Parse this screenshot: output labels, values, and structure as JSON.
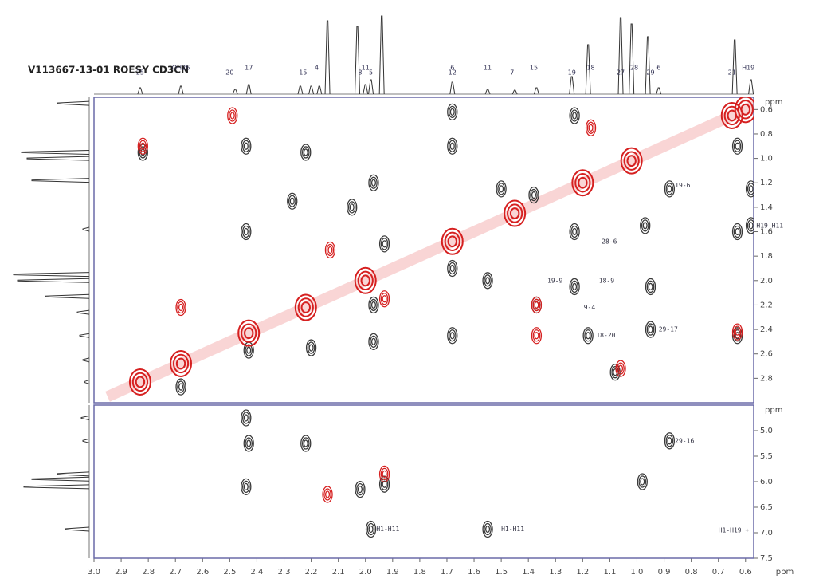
{
  "chart_data": {
    "type": "contour",
    "title": "V113667-13-01 ROESY CD3CN",
    "xlabel": "ppm",
    "xlim": [
      3.0,
      0.57
    ],
    "xticks": [
      {
        "value": 3.0,
        "label": "3.0"
      },
      2.9,
      2.8,
      2.7,
      2.6,
      2.5,
      2.4,
      2.3,
      2.2,
      2.1,
      {
        "value": 2.0,
        "label": "2.0"
      },
      1.9,
      1.8,
      1.7,
      1.6,
      1.5,
      1.4,
      1.3,
      1.2,
      1.1,
      {
        "value": 1.0,
        "label": "1.0"
      },
      0.9,
      0.8,
      0.7,
      0.6
    ],
    "projection": {
      "color": "#333333",
      "x": [
        2.83,
        2.68,
        2.48,
        2.43,
        2.24,
        2.2,
        2.17,
        2.14,
        2.03,
        2.0,
        1.98,
        1.94,
        1.68,
        1.55,
        1.45,
        1.37,
        1.24,
        1.18,
        1.06,
        1.02,
        0.96,
        0.92,
        0.64,
        0.58
      ],
      "height": [
        8,
        10,
        6,
        12,
        10,
        10,
        10,
        92,
        85,
        12,
        18,
        98,
        15,
        6,
        5,
        8,
        22,
        62,
        96,
        88,
        72,
        8,
        68,
        18
      ]
    },
    "peak_labels": [
      {
        "text": "25",
        "x": 2.83
      },
      {
        "text": "OH26",
        "x": 2.68
      },
      {
        "text": "20",
        "x": 2.5
      },
      {
        "text": "17",
        "x": 2.43
      },
      {
        "text": "15",
        "x": 2.23
      },
      {
        "text": "4",
        "x": 2.18
      },
      {
        "text": "8",
        "x": 2.02
      },
      {
        "text": "11",
        "x": 2.0
      },
      {
        "text": "5",
        "x": 1.98
      },
      {
        "text": "6",
        "x": 1.68
      },
      {
        "text": "12",
        "x": 1.68
      },
      {
        "text": "11",
        "x": 1.55
      },
      {
        "text": "7",
        "x": 1.46
      },
      {
        "text": "15",
        "x": 1.38
      },
      {
        "text": "19",
        "x": 1.24
      },
      {
        "text": "18",
        "x": 1.17
      },
      {
        "text": "27",
        "x": 1.06
      },
      {
        "text": "28",
        "x": 1.01
      },
      {
        "text": "29",
        "x": 0.95
      },
      {
        "text": "6",
        "x": 0.92
      },
      {
        "text": "21",
        "x": 0.65
      },
      {
        "text": "H19",
        "x": 0.59
      }
    ],
    "panels": [
      {
        "ylabel": "ppm",
        "ylim": [
          0.5,
          3.0
        ],
        "yticks": [
          0.6,
          0.8,
          {
            "value": 1.0,
            "label": "1.0"
          },
          1.2,
          1.4,
          1.6,
          1.8,
          {
            "value": 2.0,
            "label": "2.0"
          },
          2.2,
          2.4,
          2.6,
          2.8
        ],
        "projection": {
          "color": "#333333",
          "y": [
            0.55,
            0.95,
            1.0,
            1.18,
            1.58,
            1.95,
            2.0,
            2.13,
            2.26,
            2.45,
            2.65,
            2.83
          ],
          "height": [
            40,
            85,
            78,
            72,
            8,
            95,
            90,
            55,
            15,
            12,
            8,
            6
          ]
        },
        "positive": {
          "color": "#3a3a3a",
          "x": [
            2.82,
            2.44,
            2.22,
            2.27,
            2.44,
            2.05,
            1.97,
            1.93,
            1.68,
            1.68,
            1.68,
            1.55,
            1.5,
            1.38,
            1.37,
            1.23,
            1.23,
            1.23,
            1.18,
            1.08,
            0.97,
            0.95,
            0.95,
            0.88,
            0.63,
            0.63,
            0.63,
            0.58,
            0.58,
            1.68,
            2.43,
            2.68,
            2.2,
            1.97,
            1.97
          ],
          "y": [
            0.95,
            0.9,
            0.95,
            1.35,
            1.6,
            1.4,
            1.2,
            1.7,
            0.62,
            0.9,
            1.9,
            2.0,
            1.25,
            1.3,
            2.2,
            0.65,
            1.6,
            2.05,
            2.45,
            2.75,
            1.55,
            2.05,
            2.4,
            1.25,
            0.9,
            1.6,
            2.45,
            1.25,
            1.55,
            2.45,
            2.57,
            2.87,
            2.55,
            2.5,
            2.2
          ]
        },
        "negative": {
          "color": "#d62020",
          "x": [
            2.83,
            2.68,
            2.43,
            2.22,
            2.0,
            1.68,
            1.45,
            1.2,
            1.02,
            0.65,
            0.6,
            2.82,
            2.49,
            2.13,
            1.93,
            1.37,
            1.37,
            1.06,
            0.63,
            1.17,
            2.68
          ],
          "y": [
            2.83,
            2.68,
            2.43,
            2.22,
            2.0,
            1.68,
            1.45,
            1.2,
            1.02,
            0.65,
            0.6,
            0.9,
            0.65,
            1.75,
            2.15,
            2.2,
            2.45,
            2.72,
            2.42,
            0.75,
            2.22
          ]
        },
        "annotations": [
          {
            "text": "19-6",
            "x": 0.86,
            "y": 1.22
          },
          {
            "text": "H19-H11",
            "x": 0.56,
            "y": 1.55
          },
          {
            "text": "28-6",
            "x": 1.13,
            "y": 1.68
          },
          {
            "text": "19-9",
            "x": 1.33,
            "y": 2.0
          },
          {
            "text": "18-9",
            "x": 1.14,
            "y": 2.0
          },
          {
            "text": "19-4",
            "x": 1.21,
            "y": 2.22
          },
          {
            "text": "18-20",
            "x": 1.15,
            "y": 2.45
          },
          {
            "text": "29-17",
            "x": 0.92,
            "y": 2.4
          }
        ]
      },
      {
        "ylabel": "ppm",
        "ylim": [
          4.5,
          7.5
        ],
        "yticks": [
          {
            "value": 5.0,
            "label": "5.0"
          },
          5.5,
          {
            "value": 6.0,
            "label": "6.0"
          },
          6.5,
          {
            "value": 7.0,
            "label": "7.0"
          },
          7.5
        ],
        "projection": {
          "color": "#333333",
          "y": [
            4.75,
            5.2,
            5.85,
            5.95,
            6.1,
            6.93
          ],
          "height": [
            10,
            8,
            40,
            72,
            82,
            30
          ]
        },
        "positive": {
          "color": "#3a3a3a",
          "x": [
            2.44,
            2.43,
            2.22,
            2.44,
            2.02,
            1.93,
            1.98,
            1.55,
            0.98,
            0.88
          ],
          "y": [
            4.75,
            5.25,
            5.25,
            6.1,
            6.15,
            6.05,
            6.93,
            6.93,
            6.0,
            5.2
          ]
        },
        "negative": {
          "color": "#d62020",
          "x": [
            1.93,
            2.14
          ],
          "y": [
            5.85,
            6.25
          ]
        },
        "annotations": [
          {
            "text": "29-16",
            "x": 0.86,
            "y": 5.2
          },
          {
            "text": "H1-H11",
            "x": 1.5,
            "y": 6.93
          },
          {
            "text": "H1-H11",
            "x": 1.96,
            "y": 6.93
          },
          {
            "text": "H1-H19 +",
            "x": 0.7,
            "y": 6.95
          }
        ]
      }
    ]
  }
}
